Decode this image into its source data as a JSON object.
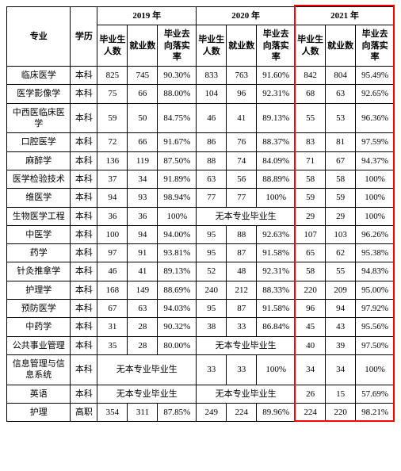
{
  "header": {
    "major": "专业",
    "degree": "学历",
    "years": [
      "2019 年",
      "2020 年",
      "2021 年"
    ],
    "sub": {
      "grads": "毕业生人数",
      "employed": "就业数",
      "rate": "毕业去向落实率"
    }
  },
  "no_grads_text": "无本专业毕业生",
  "highlight_color": "#ff0000",
  "rows": [
    {
      "major": "临床医学",
      "degree": "本科",
      "y19": {
        "g": "825",
        "e": "745",
        "r": "90.30%"
      },
      "y20": {
        "g": "833",
        "e": "763",
        "r": "91.60%"
      },
      "y21": {
        "g": "842",
        "e": "804",
        "r": "95.49%"
      }
    },
    {
      "major": "医学影像学",
      "degree": "本科",
      "y19": {
        "g": "75",
        "e": "66",
        "r": "88.00%"
      },
      "y20": {
        "g": "104",
        "e": "96",
        "r": "92.31%"
      },
      "y21": {
        "g": "68",
        "e": "63",
        "r": "92.65%"
      }
    },
    {
      "major": "中西医临床医学",
      "degree": "本科",
      "y19": {
        "g": "59",
        "e": "50",
        "r": "84.75%"
      },
      "y20": {
        "g": "46",
        "e": "41",
        "r": "89.13%"
      },
      "y21": {
        "g": "55",
        "e": "53",
        "r": "96.36%"
      }
    },
    {
      "major": "口腔医学",
      "degree": "本科",
      "y19": {
        "g": "72",
        "e": "66",
        "r": "91.67%"
      },
      "y20": {
        "g": "86",
        "e": "76",
        "r": "88.37%"
      },
      "y21": {
        "g": "83",
        "e": "81",
        "r": "97.59%"
      }
    },
    {
      "major": "麻醉学",
      "degree": "本科",
      "y19": {
        "g": "136",
        "e": "119",
        "r": "87.50%"
      },
      "y20": {
        "g": "88",
        "e": "74",
        "r": "84.09%"
      },
      "y21": {
        "g": "71",
        "e": "67",
        "r": "94.37%"
      }
    },
    {
      "major": "医学检验技术",
      "degree": "本科",
      "y19": {
        "g": "37",
        "e": "34",
        "r": "91.89%"
      },
      "y20": {
        "g": "63",
        "e": "56",
        "r": "88.89%"
      },
      "y21": {
        "g": "58",
        "e": "58",
        "r": "100%"
      }
    },
    {
      "major": "维医学",
      "degree": "本科",
      "y19": {
        "g": "94",
        "e": "93",
        "r": "98.94%"
      },
      "y20": {
        "g": "77",
        "e": "77",
        "r": "100%"
      },
      "y21": {
        "g": "59",
        "e": "59",
        "r": "100%"
      }
    },
    {
      "major": "生物医学工程",
      "degree": "本科",
      "y19": {
        "g": "36",
        "e": "36",
        "r": "100%"
      },
      "y20": "none",
      "y21": {
        "g": "29",
        "e": "29",
        "r": "100%"
      }
    },
    {
      "major": "中医学",
      "degree": "本科",
      "y19": {
        "g": "100",
        "e": "94",
        "r": "94.00%"
      },
      "y20": {
        "g": "95",
        "e": "88",
        "r": "92.63%"
      },
      "y21": {
        "g": "107",
        "e": "103",
        "r": "96.26%"
      }
    },
    {
      "major": "药学",
      "degree": "本科",
      "y19": {
        "g": "97",
        "e": "91",
        "r": "93.81%"
      },
      "y20": {
        "g": "95",
        "e": "87",
        "r": "91.58%"
      },
      "y21": {
        "g": "65",
        "e": "62",
        "r": "95.38%"
      }
    },
    {
      "major": "针灸推拿学",
      "degree": "本科",
      "y19": {
        "g": "46",
        "e": "41",
        "r": "89.13%"
      },
      "y20": {
        "g": "52",
        "e": "48",
        "r": "92.31%"
      },
      "y21": {
        "g": "58",
        "e": "55",
        "r": "94.83%"
      }
    },
    {
      "major": "护理学",
      "degree": "本科",
      "y19": {
        "g": "168",
        "e": "149",
        "r": "88.69%"
      },
      "y20": {
        "g": "240",
        "e": "212",
        "r": "88.33%"
      },
      "y21": {
        "g": "220",
        "e": "209",
        "r": "95.00%"
      }
    },
    {
      "major": "预防医学",
      "degree": "本科",
      "y19": {
        "g": "67",
        "e": "63",
        "r": "94.03%"
      },
      "y20": {
        "g": "95",
        "e": "87",
        "r": "91.58%"
      },
      "y21": {
        "g": "96",
        "e": "94",
        "r": "97.92%"
      }
    },
    {
      "major": "中药学",
      "degree": "本科",
      "y19": {
        "g": "31",
        "e": "28",
        "r": "90.32%"
      },
      "y20": {
        "g": "38",
        "e": "33",
        "r": "86.84%"
      },
      "y21": {
        "g": "45",
        "e": "43",
        "r": "95.56%"
      }
    },
    {
      "major": "公共事业管理",
      "degree": "本科",
      "y19": {
        "g": "35",
        "e": "28",
        "r": "80.00%"
      },
      "y20": "none",
      "y21": {
        "g": "40",
        "e": "39",
        "r": "97.50%"
      }
    },
    {
      "major": "信息管理与信息系统",
      "degree": "本科",
      "y19": "none",
      "y20": {
        "g": "33",
        "e": "33",
        "r": "100%"
      },
      "y21": {
        "g": "34",
        "e": "34",
        "r": "100%"
      }
    },
    {
      "major": "英语",
      "degree": "本科",
      "y19": "none",
      "y20": "none",
      "y21": {
        "g": "26",
        "e": "15",
        "r": "57.69%"
      }
    },
    {
      "major": "护理",
      "degree": "高职",
      "y19": {
        "g": "354",
        "e": "311",
        "r": "87.85%"
      },
      "y20": {
        "g": "249",
        "e": "224",
        "r": "89.96%"
      },
      "y21": {
        "g": "224",
        "e": "220",
        "r": "98.21%"
      }
    }
  ]
}
